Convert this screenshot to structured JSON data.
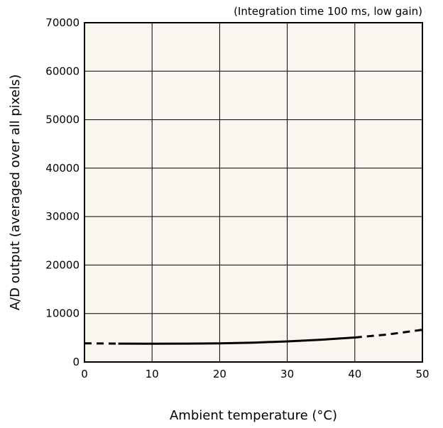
{
  "chart_data": {
    "type": "line",
    "annotation": "(Integration time 100 ms, low gain)",
    "xlabel": "Ambient temperature (°C)",
    "ylabel": "A/D output (averaged over all pixels)",
    "xlim": [
      0,
      50
    ],
    "ylim": [
      0,
      70000
    ],
    "x_ticks": [
      0,
      10,
      20,
      30,
      40,
      50
    ],
    "y_ticks": [
      0,
      10000,
      20000,
      30000,
      40000,
      50000,
      60000,
      70000
    ],
    "grid": true,
    "plot_background": "#f8f6ee",
    "line_color": "#000000",
    "series": [
      {
        "segments": [
          {
            "style": "dashed",
            "x": [
              0,
              5
            ],
            "y": [
              3850,
              3800
            ]
          },
          {
            "style": "solid",
            "x": [
              5,
              10,
              15,
              20,
              25,
              30,
              35,
              40
            ],
            "y": [
              3800,
              3780,
              3800,
              3850,
              4000,
              4250,
              4600,
              5050
            ]
          },
          {
            "style": "dashed",
            "x": [
              40,
              45,
              50
            ],
            "y": [
              5050,
              5700,
              6650
            ]
          }
        ]
      }
    ]
  }
}
